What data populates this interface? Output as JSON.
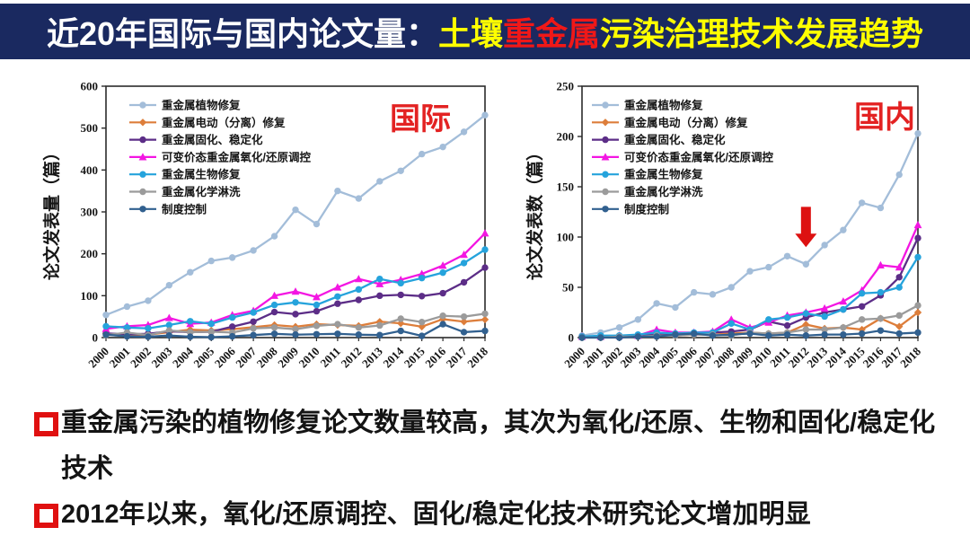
{
  "slide": {
    "title": {
      "prefix": "近20年国际与国内论文量：",
      "soil": "土壤",
      "heavy_metal": "重金属",
      "rest": "污染治理技术发展趋势"
    },
    "colors": {
      "title_bg": "#1a2960",
      "title_text": "#ffffff",
      "highlight_yellow": "#ffff00",
      "highlight_red": "#f01818",
      "bullet_red": "#e01010",
      "region_label_red": "#e32222"
    }
  },
  "bullets": [
    {
      "text": "重金属污染的植物修复论文数量较高，其次为氧化/还原、生物和固化/稳定化技术"
    },
    {
      "text": "2012年以来，氧化/还原调控、固化/稳定化技术研究论文增加明显"
    }
  ],
  "chart_data": [
    {
      "type": "line",
      "region_label": "国际",
      "region_color": "#e32222",
      "ylabel": "论文发表量（篇）",
      "xlabel": "",
      "ylim": [
        0,
        600
      ],
      "yticks": [
        0,
        100,
        200,
        300,
        400,
        500,
        600
      ],
      "grid": false,
      "legend_position": "inside-top-left",
      "categories": [
        "2000",
        "2001",
        "2002",
        "2003",
        "2004",
        "2005",
        "2006",
        "2007",
        "2008",
        "2009",
        "2010",
        "2011",
        "2012",
        "2013",
        "2014",
        "2015",
        "2016",
        "2017",
        "2018"
      ],
      "series": [
        {
          "name": "重金属植物修复",
          "color": "#a3bdd9",
          "marker": "circle",
          "values": [
            54,
            74,
            88,
            125,
            156,
            183,
            191,
            208,
            242,
            305,
            271,
            350,
            332,
            373,
            398,
            438,
            455,
            491,
            531
          ]
        },
        {
          "name": "重金属电动（分离）修复",
          "color": "#dd7e3b",
          "marker": "diamond",
          "values": [
            10,
            6,
            7,
            13,
            19,
            17,
            20,
            25,
            30,
            26,
            32,
            30,
            28,
            38,
            34,
            26,
            44,
            38,
            43
          ]
        },
        {
          "name": "重金属固化、稳定化",
          "color": "#5c2d87",
          "marker": "circle",
          "values": [
            10,
            8,
            9,
            15,
            13,
            14,
            26,
            38,
            61,
            56,
            63,
            81,
            90,
            100,
            102,
            99,
            106,
            132,
            167
          ]
        },
        {
          "name": "可变价态重金属氧化/还原调控",
          "color": "#f316e2",
          "marker": "triangle",
          "values": [
            21,
            27,
            30,
            47,
            33,
            36,
            54,
            64,
            100,
            110,
            97,
            120,
            140,
            128,
            138,
            152,
            172,
            198,
            249
          ]
        },
        {
          "name": "重金属生物修复",
          "color": "#25a3dc",
          "marker": "circle",
          "values": [
            27,
            24,
            22,
            30,
            39,
            33,
            48,
            60,
            78,
            84,
            78,
            98,
            115,
            140,
            130,
            142,
            155,
            178,
            210
          ]
        },
        {
          "name": "重金属化学淋洗",
          "color": "#9b9b9b",
          "marker": "circle",
          "values": [
            6,
            12,
            6,
            17,
            13,
            14,
            12,
            22,
            24,
            20,
            28,
            32,
            24,
            29,
            45,
            37,
            52,
            50,
            57
          ]
        },
        {
          "name": "制度控制",
          "color": "#31608f",
          "marker": "circle",
          "values": [
            7,
            3,
            2,
            5,
            2,
            1,
            3,
            6,
            9,
            7,
            8,
            9,
            7,
            6,
            16,
            4,
            32,
            13,
            16
          ]
        }
      ],
      "annotation": null
    },
    {
      "type": "line",
      "region_label": "国内",
      "region_color": "#e32222",
      "ylabel": "论文发表数（篇）",
      "xlabel": "",
      "ylim": [
        0,
        250
      ],
      "yticks": [
        0,
        50,
        100,
        150,
        200,
        250
      ],
      "grid": false,
      "legend_position": "inside-top-left",
      "categories": [
        "2000",
        "2001",
        "2002",
        "2003",
        "2004",
        "2005",
        "2006",
        "2007",
        "2008",
        "2009",
        "2010",
        "2011",
        "2012",
        "2013",
        "2014",
        "2015",
        "2016",
        "2017",
        "2018"
      ],
      "series": [
        {
          "name": "重金属植物修复",
          "color": "#a3bdd9",
          "marker": "circle",
          "values": [
            2,
            5,
            10,
            18,
            34,
            30,
            45,
            43,
            50,
            66,
            70,
            81,
            73,
            92,
            107,
            134,
            129,
            162,
            203
          ]
        },
        {
          "name": "重金属电动（分离）修复",
          "color": "#dd7e3b",
          "marker": "diamond",
          "values": [
            1,
            1,
            1,
            2,
            3,
            2,
            3,
            3,
            4,
            5,
            4,
            5,
            13,
            9,
            10,
            8,
            19,
            11,
            25
          ]
        },
        {
          "name": "重金属固化、稳定化",
          "color": "#5c2d87",
          "marker": "circle",
          "values": [
            1,
            1,
            1,
            2,
            3,
            4,
            4,
            5,
            6,
            8,
            16,
            12,
            20,
            25,
            28,
            31,
            42,
            60,
            99
          ]
        },
        {
          "name": "可变价态重金属氧化/还原调控",
          "color": "#f316e2",
          "marker": "triangle",
          "values": [
            1,
            1,
            2,
            2,
            8,
            5,
            5,
            6,
            18,
            10,
            15,
            22,
            25,
            29,
            36,
            47,
            72,
            70,
            112
          ]
        },
        {
          "name": "重金属生物修复",
          "color": "#25a3dc",
          "marker": "circle",
          "values": [
            1,
            2,
            2,
            3,
            5,
            4,
            5,
            5,
            14,
            8,
            18,
            20,
            24,
            21,
            28,
            44,
            45,
            50,
            80
          ]
        },
        {
          "name": "重金属化学淋洗",
          "color": "#9b9b9b",
          "marker": "circle",
          "values": [
            0,
            0,
            1,
            1,
            2,
            2,
            3,
            3,
            2,
            5,
            4,
            5,
            8,
            8,
            10,
            18,
            19,
            22,
            32
          ]
        },
        {
          "name": "制度控制",
          "color": "#31608f",
          "marker": "circle",
          "values": [
            0,
            0,
            0,
            1,
            1,
            3,
            4,
            2,
            3,
            4,
            2,
            3,
            2,
            3,
            3,
            4,
            7,
            4,
            5
          ]
        }
      ],
      "annotation": {
        "type": "down-arrow",
        "at_category": "2012",
        "from_value": 130,
        "to_value": 90,
        "color": "#dd1111"
      }
    }
  ]
}
